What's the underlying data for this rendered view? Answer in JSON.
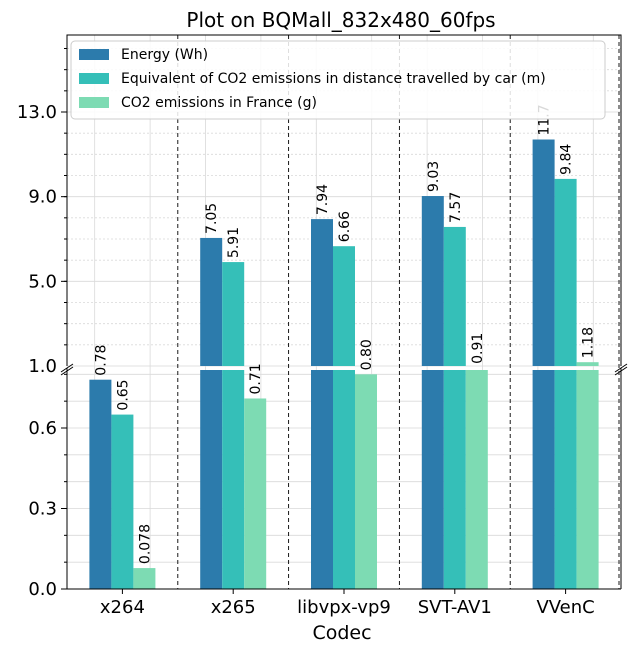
{
  "chart_data": {
    "type": "bar",
    "title": "Plot on BQMall_832x480_60fps",
    "xlabel": "Codec",
    "ylabel": "",
    "categories": [
      "x264",
      "x265",
      "libvpx-vp9",
      "SVT-AV1",
      "VVenC"
    ],
    "series": [
      {
        "name": "Energy (Wh)",
        "color": "#2c7bac",
        "values": [
          0.78,
          7.05,
          7.94,
          9.03,
          11.7
        ],
        "labels": [
          "0.78",
          "7.05",
          "7.94",
          "9.03",
          "11.7"
        ]
      },
      {
        "name": "Equivalent of CO2 emissions in distance travelled by car (m)",
        "color": "#35bfb8",
        "values": [
          0.65,
          5.91,
          6.66,
          7.57,
          9.84
        ],
        "labels": [
          "0.65",
          "5.91",
          "6.66",
          "7.57",
          "9.84"
        ]
      },
      {
        "name": "CO2 emissions in France (g)",
        "color": "#7ddbb3",
        "values": [
          0.078,
          0.71,
          0.8,
          0.91,
          1.18
        ],
        "labels": [
          "0.078",
          "0.71",
          "0.80",
          "0.91",
          "1.18"
        ]
      }
    ],
    "broken_axis": true,
    "lower_ylim": [
      0,
      0.8
    ],
    "upper_ylim": [
      1.0,
      17.0
    ],
    "lower_yticks": [
      "0.0",
      "0.3",
      "0.6",
      "1.0"
    ],
    "upper_yticks": [
      "5.0",
      "9.0",
      "13.0"
    ],
    "grid": true,
    "legend_position": "top-left"
  }
}
